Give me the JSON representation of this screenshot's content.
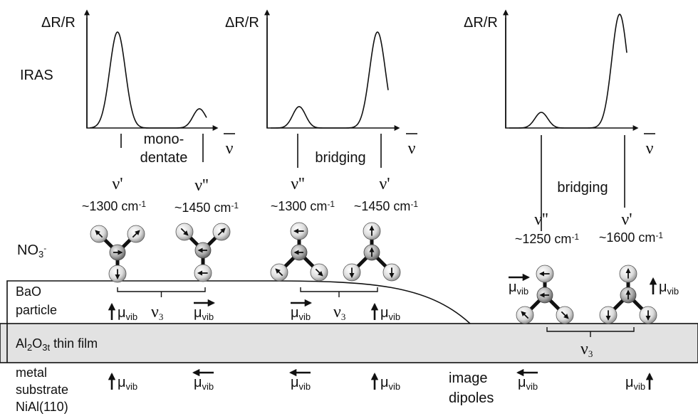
{
  "panels": [
    {
      "y_axis": "ΔR/R",
      "x_axis": "ν",
      "mode": [
        "mono-",
        "dentate"
      ],
      "bands": [
        {
          "symbol": "ν'",
          "position": "~1300 cm",
          "unit_power": "-1"
        },
        {
          "symbol": "ν''",
          "position": "~1450 cm",
          "unit_power": "-1"
        }
      ]
    },
    {
      "y_axis": "ΔR/R",
      "x_axis": "ν",
      "mode": [
        "bridging"
      ],
      "bands": [
        {
          "symbol": "ν''",
          "position": "~1300 cm",
          "unit_power": "-1"
        },
        {
          "symbol": "ν'",
          "position": "~1450 cm",
          "unit_power": "-1"
        }
      ]
    },
    {
      "y_axis": "ΔR/R",
      "x_axis": "ν",
      "mode": [
        "bridging"
      ],
      "bands": [
        {
          "symbol": "ν''",
          "position": "~1250 cm",
          "unit_power": "-1"
        },
        {
          "symbol": "ν'",
          "position": "~1600 cm",
          "unit_power": "-1"
        }
      ]
    }
  ],
  "row_labels": {
    "iras": "IRAS",
    "adsorbate": {
      "text": "NO",
      "sub": "3",
      "sup": "-"
    },
    "particle": [
      "BaO",
      "particle"
    ],
    "film": [
      "Al",
      "2",
      "O",
      "3t",
      " thin film"
    ],
    "metal": [
      "metal",
      "substrate",
      "NiAl(110)"
    ],
    "image_dipoles": [
      "image",
      "dipoles"
    ]
  },
  "dipole": {
    "symbol": "μ",
    "sub": "vib"
  },
  "coupling": {
    "symbol": "ν",
    "sub": "3"
  }
}
